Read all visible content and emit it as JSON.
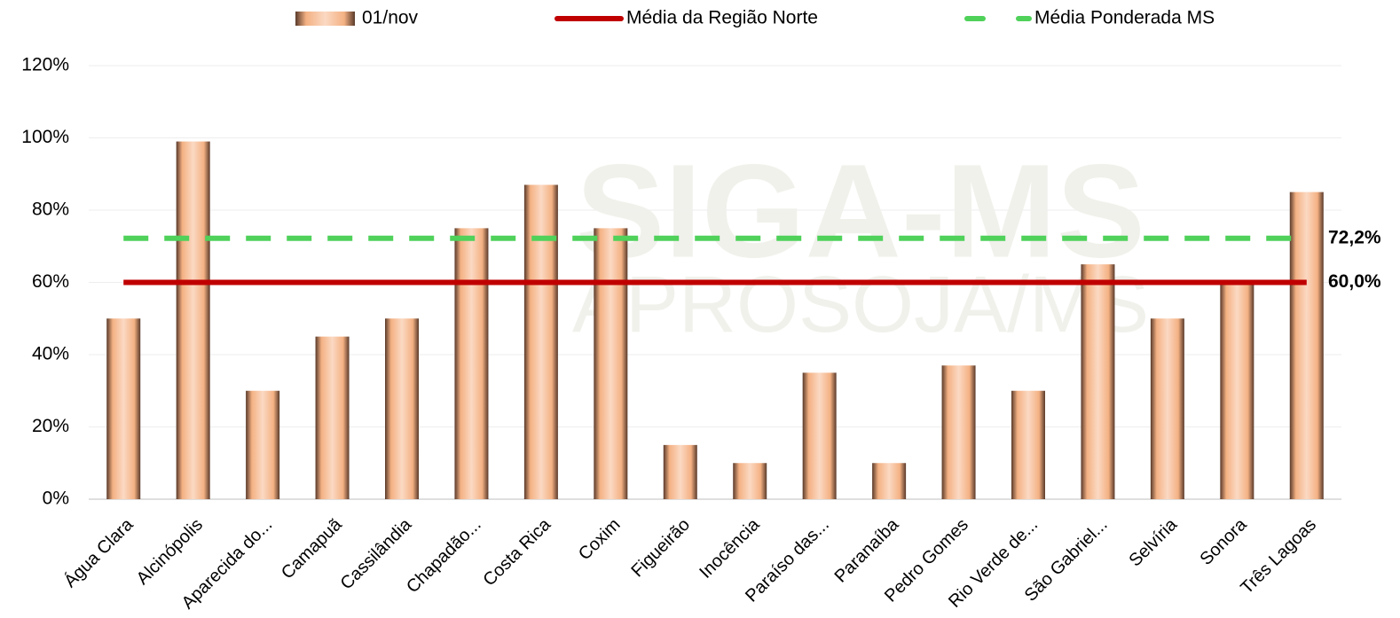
{
  "chart_data": {
    "type": "bar",
    "watermark": [
      "SIGA-MS",
      "APROSOJA/MS"
    ],
    "series_name": "01/nov",
    "color": "#f4b183",
    "categories": [
      "Água Clara",
      "Alcinópolis",
      "Aparecida do...",
      "Camapuã",
      "Cassilândia",
      "Chapadão...",
      "Costa Rica",
      "Coxim",
      "Figueirão",
      "Inocência",
      "Paraíso das...",
      "Paranaíba",
      "Pedro Gomes",
      "Rio Verde de...",
      "São Gabriel...",
      "Selvíria",
      "Sonora",
      "Três Lagoas"
    ],
    "values": [
      50,
      99,
      30,
      45,
      50,
      75,
      87,
      75,
      15,
      10,
      35,
      10,
      37,
      30,
      65,
      50,
      60,
      85
    ],
    "reference_lines": [
      {
        "name": "Média da Região Norte",
        "color": "#c00000",
        "style": "solid",
        "value": 60.0,
        "value_label": "60,0%"
      },
      {
        "name": "Média Ponderada MS",
        "color": "#4fd15a",
        "style": "dashed",
        "value": 72.2,
        "value_label": "72,2%"
      }
    ],
    "ylim": [
      0,
      120
    ],
    "yticks": [
      {
        "value": 0,
        "label": "0%"
      },
      {
        "value": 20,
        "label": "20%"
      },
      {
        "value": 40,
        "label": "40%"
      },
      {
        "value": 60,
        "label": "60%"
      },
      {
        "value": 80,
        "label": "80%"
      },
      {
        "value": 100,
        "label": "100%"
      },
      {
        "value": 120,
        "label": "120%"
      }
    ],
    "grid": true
  }
}
